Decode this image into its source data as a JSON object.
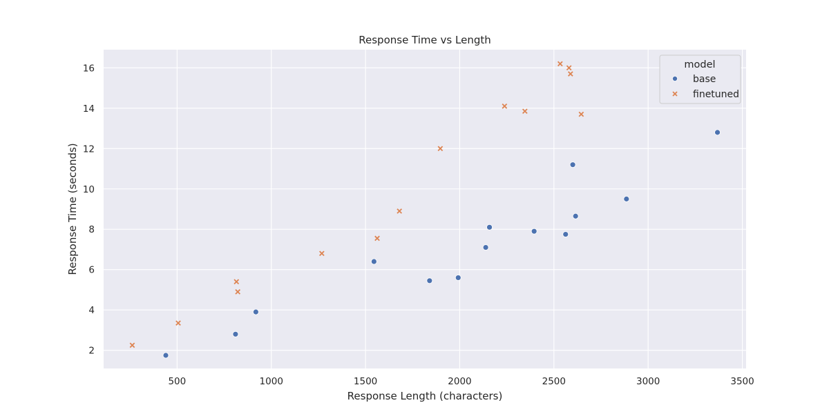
{
  "chart_data": {
    "type": "scatter",
    "title": "Response Time vs Length",
    "xlabel": "Response Length (characters)",
    "ylabel": "Response Time (seconds)",
    "xlim": [
      110,
      3520
    ],
    "ylim": [
      1.1,
      16.9
    ],
    "xticks": [
      500,
      1000,
      1500,
      2000,
      2500,
      3000,
      3500
    ],
    "yticks": [
      2,
      4,
      6,
      8,
      10,
      12,
      14,
      16
    ],
    "grid": true,
    "legend": {
      "title": "model",
      "placement": "top-right"
    },
    "series": [
      {
        "name": "base",
        "marker": "circle",
        "color": "#4c72b0",
        "points": [
          {
            "x": 440,
            "y": 1.75
          },
          {
            "x": 810,
            "y": 2.8
          },
          {
            "x": 918,
            "y": 3.9
          },
          {
            "x": 1545,
            "y": 6.4
          },
          {
            "x": 1840,
            "y": 5.45
          },
          {
            "x": 1992,
            "y": 5.6
          },
          {
            "x": 2138,
            "y": 7.1
          },
          {
            "x": 2158,
            "y": 8.1
          },
          {
            "x": 2395,
            "y": 7.9
          },
          {
            "x": 2562,
            "y": 7.75
          },
          {
            "x": 2600,
            "y": 11.2
          },
          {
            "x": 2615,
            "y": 8.65
          },
          {
            "x": 2885,
            "y": 9.5
          },
          {
            "x": 3368,
            "y": 12.8
          }
        ]
      },
      {
        "name": "finetuned",
        "marker": "x",
        "color": "#dd8452",
        "points": [
          {
            "x": 262,
            "y": 2.25
          },
          {
            "x": 506,
            "y": 3.35
          },
          {
            "x": 815,
            "y": 5.4
          },
          {
            "x": 822,
            "y": 4.9
          },
          {
            "x": 1268,
            "y": 6.8
          },
          {
            "x": 1562,
            "y": 7.55
          },
          {
            "x": 1680,
            "y": 8.9
          },
          {
            "x": 1897,
            "y": 12.0
          },
          {
            "x": 2238,
            "y": 14.1
          },
          {
            "x": 2346,
            "y": 13.85
          },
          {
            "x": 2533,
            "y": 16.2
          },
          {
            "x": 2580,
            "y": 16.0
          },
          {
            "x": 2588,
            "y": 15.7
          },
          {
            "x": 2645,
            "y": 13.7
          }
        ]
      }
    ]
  }
}
